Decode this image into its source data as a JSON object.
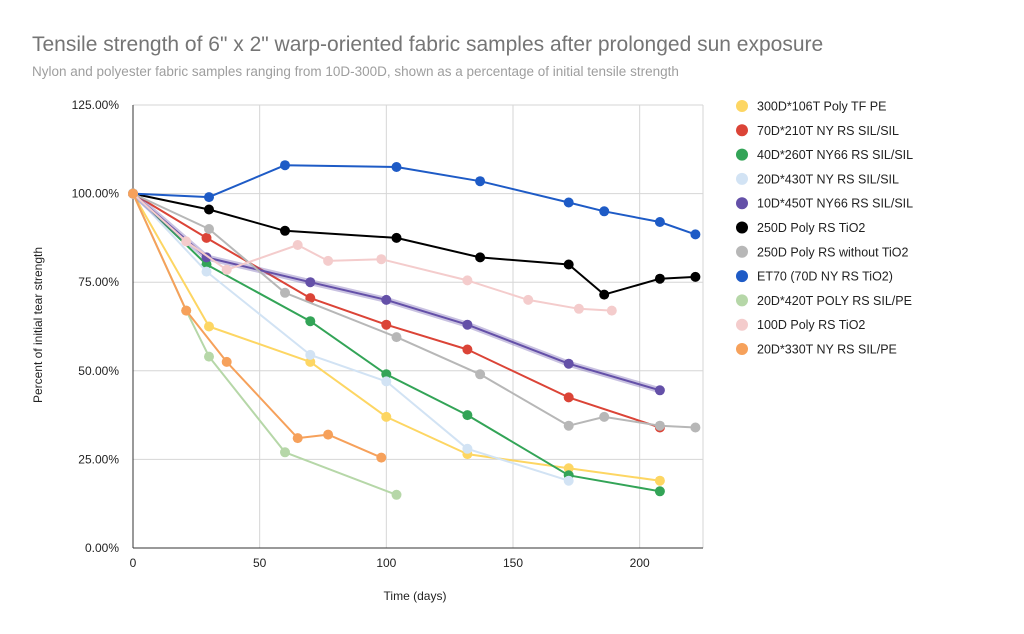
{
  "chart_data": {
    "type": "line",
    "title": "Tensile strength of 6\" x 2\" warp-oriented fabric samples after prolonged sun exposure",
    "subtitle": "Nylon and polyester fabric samples ranging from 10D-300D, shown as a percentage of initial tensile strength",
    "xlabel": "Time (days)",
    "ylabel": "Percent of initial tear strength",
    "xlim": [
      0,
      225
    ],
    "ylim": [
      0,
      125
    ],
    "x_ticks": [
      "0",
      "50",
      "100",
      "150",
      "200"
    ],
    "y_ticks": [
      "0.00%",
      "25.00%",
      "50.00%",
      "75.00%",
      "100.00%",
      "125.00%"
    ],
    "grid": true,
    "legend_position": "right",
    "series": [
      {
        "name": "300D*106T Poly TF PE",
        "color": "#fdd663",
        "points": [
          [
            0,
            100
          ],
          [
            30,
            62.5
          ],
          [
            70,
            52.5
          ],
          [
            100,
            37
          ],
          [
            132,
            26.5
          ],
          [
            172,
            22.5
          ],
          [
            208,
            19
          ]
        ]
      },
      {
        "name": "70D*210T NY RS SIL/SIL",
        "color": "#db4437",
        "points": [
          [
            0,
            100
          ],
          [
            29,
            87.5
          ],
          [
            70,
            70.5
          ],
          [
            100,
            63
          ],
          [
            132,
            56
          ],
          [
            172,
            42.5
          ],
          [
            208,
            34
          ]
        ]
      },
      {
        "name": "40D*260T NY66 RS SIL/SIL",
        "color": "#33a457",
        "points": [
          [
            0,
            100
          ],
          [
            29,
            80
          ],
          [
            70,
            64
          ],
          [
            100,
            49
          ],
          [
            132,
            37.5
          ],
          [
            172,
            20.5
          ],
          [
            208,
            16
          ]
        ]
      },
      {
        "name": "20D*430T NY RS SIL/SIL",
        "color": "#d2e3f4",
        "points": [
          [
            0,
            100
          ],
          [
            29,
            78
          ],
          [
            70,
            54.5
          ],
          [
            100,
            47
          ],
          [
            132,
            28
          ],
          [
            172,
            19
          ]
        ]
      },
      {
        "name": "10D*450T NY66 RS SIL/SIL",
        "color": "#6450a8",
        "points": [
          [
            0,
            100
          ],
          [
            29,
            82
          ],
          [
            70,
            75
          ],
          [
            100,
            70
          ],
          [
            132,
            63
          ],
          [
            172,
            52
          ],
          [
            208,
            44.5
          ]
        ]
      },
      {
        "name": "250D Poly RS TiO2",
        "color": "#000000",
        "points": [
          [
            0,
            100
          ],
          [
            30,
            95.5
          ],
          [
            60,
            89.5
          ],
          [
            104,
            87.5
          ],
          [
            137,
            82
          ],
          [
            172,
            80
          ],
          [
            186,
            71.5
          ],
          [
            208,
            76
          ],
          [
            222,
            76.5
          ]
        ]
      },
      {
        "name": "250D Poly RS without TiO2",
        "color": "#b7b7b7",
        "points": [
          [
            0,
            100
          ],
          [
            30,
            90
          ],
          [
            60,
            72
          ],
          [
            104,
            59.5
          ],
          [
            137,
            49
          ],
          [
            172,
            34.5
          ],
          [
            186,
            37
          ],
          [
            208,
            34.5
          ],
          [
            222,
            34
          ]
        ]
      },
      {
        "name": "ET70 (70D NY RS TiO2)",
        "color": "#1e5bc6",
        "points": [
          [
            0,
            100
          ],
          [
            30,
            99
          ],
          [
            60,
            108
          ],
          [
            104,
            107.5
          ],
          [
            137,
            103.5
          ],
          [
            172,
            97.5
          ],
          [
            186,
            95
          ],
          [
            208,
            92
          ],
          [
            222,
            88.5
          ]
        ]
      },
      {
        "name": "20D*420T POLY RS SIL/PE",
        "color": "#b6d7a8",
        "points": [
          [
            0,
            100
          ],
          [
            21,
            67
          ],
          [
            30,
            54
          ],
          [
            60,
            27
          ],
          [
            104,
            15
          ]
        ]
      },
      {
        "name": "100D Poly RS TiO2",
        "color": "#f4cccc",
        "points": [
          [
            0,
            100
          ],
          [
            21,
            86.5
          ],
          [
            37,
            78.5
          ],
          [
            65,
            85.5
          ],
          [
            77,
            81
          ],
          [
            98,
            81.5
          ],
          [
            132,
            75.5
          ],
          [
            156,
            70
          ],
          [
            176,
            67.5
          ],
          [
            189,
            67
          ]
        ]
      },
      {
        "name": "20D*330T NY RS SIL/PE",
        "color": "#f6a15b",
        "points": [
          [
            0,
            100
          ],
          [
            21,
            67
          ],
          [
            37,
            52.5
          ],
          [
            65,
            31
          ],
          [
            77,
            32
          ],
          [
            98,
            25.5
          ]
        ]
      }
    ]
  }
}
